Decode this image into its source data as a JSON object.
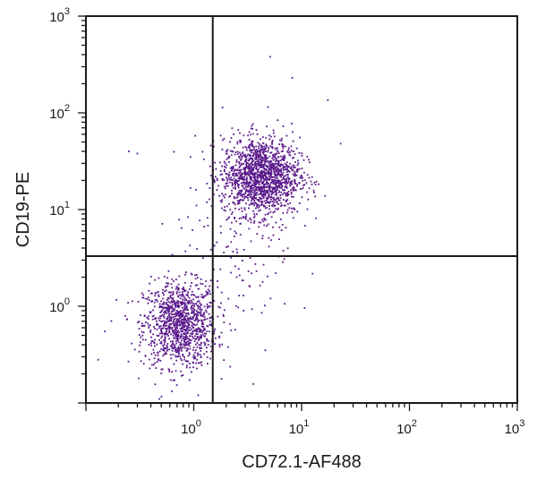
{
  "chart_data": {
    "type": "scatter",
    "xlabel": "CD72.1-AF488",
    "ylabel": "CD19-PE",
    "x_scale": "log",
    "y_scale": "log",
    "xlim": [
      0.1,
      1000
    ],
    "ylim": [
      0.1,
      1000
    ],
    "x_ticks": [
      {
        "base": "10",
        "exp": "0",
        "value": 1
      },
      {
        "base": "10",
        "exp": "1",
        "value": 10
      },
      {
        "base": "10",
        "exp": "2",
        "value": 100
      },
      {
        "base": "10",
        "exp": "3",
        "value": 1000
      }
    ],
    "y_ticks": [
      {
        "base": "10",
        "exp": "0",
        "value": 1
      },
      {
        "base": "10",
        "exp": "1",
        "value": 10
      },
      {
        "base": "10",
        "exp": "2",
        "value": 100
      },
      {
        "base": "10",
        "exp": "3",
        "value": 1000
      }
    ],
    "grid": false,
    "quadrant_gates": {
      "x": 1.5,
      "y": 3.3
    },
    "point_color": "#5b1a8c",
    "populations": [
      {
        "x_center": 0.75,
        "y_center": 0.65,
        "x_spread_log": 0.17,
        "y_spread_log": 0.22,
        "count": 1100
      },
      {
        "x_center": 4.2,
        "y_center": 22,
        "x_spread_log": 0.18,
        "y_spread_log": 0.2,
        "count": 1500
      },
      {
        "x_center": 2.4,
        "y_center": 4.0,
        "x_spread_log": 0.28,
        "y_spread_log": 0.45,
        "count": 120
      }
    ],
    "points": [
      [
        5.1,
        380
      ],
      [
        8.2,
        230
      ],
      [
        17.5,
        135
      ],
      [
        23,
        48
      ],
      [
        0.3,
        38
      ],
      [
        0.25,
        40
      ],
      [
        0.15,
        0.55
      ],
      [
        0.13,
        0.28
      ],
      [
        0.48,
        0.11
      ],
      [
        1.1,
        0.12
      ],
      [
        4.6,
        0.35
      ],
      [
        2.9,
        0.9
      ],
      [
        1.9,
        3.6
      ],
      [
        2.5,
        2.0
      ],
      [
        3.3,
        1.6
      ]
    ]
  }
}
